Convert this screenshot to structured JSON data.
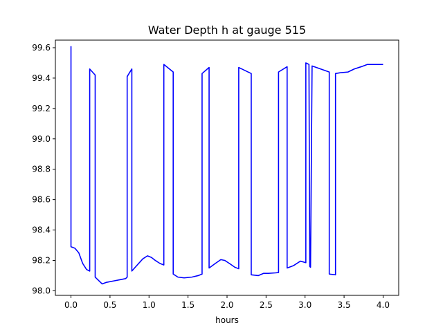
{
  "chart_data": {
    "type": "line",
    "title": "Water Depth h at gauge 515",
    "xlabel": "hours",
    "ylabel": "",
    "xlim": [
      -0.2,
      4.2
    ],
    "ylim": [
      97.97,
      99.65
    ],
    "xticks": [
      0.0,
      0.5,
      1.0,
      1.5,
      2.0,
      2.5,
      3.0,
      3.5,
      4.0
    ],
    "xtick_labels": [
      "0.0",
      "0.5",
      "1.0",
      "1.5",
      "2.0",
      "2.5",
      "3.0",
      "3.5",
      "4.0"
    ],
    "yticks": [
      98.0,
      98.2,
      98.4,
      98.6,
      98.8,
      99.0,
      99.2,
      99.4,
      99.6
    ],
    "ytick_labels": [
      "98.0",
      "98.2",
      "98.4",
      "98.6",
      "98.8",
      "99.0",
      "99.2",
      "99.4",
      "99.6"
    ],
    "grid": false,
    "series": [
      {
        "color": "#0000ff",
        "x": [
          0.0,
          0.0,
          0.05,
          0.1,
          0.15,
          0.2,
          0.24,
          0.24,
          0.31,
          0.31,
          0.35,
          0.4,
          0.45,
          0.55,
          0.65,
          0.7,
          0.72,
          0.72,
          0.78,
          0.78,
          0.85,
          0.92,
          0.98,
          1.03,
          1.08,
          1.14,
          1.19,
          1.19,
          1.31,
          1.31,
          1.37,
          1.45,
          1.55,
          1.63,
          1.68,
          1.68,
          1.77,
          1.77,
          1.85,
          1.92,
          1.97,
          2.03,
          2.1,
          2.15,
          2.15,
          2.31,
          2.31,
          2.4,
          2.47,
          2.53,
          2.62,
          2.66,
          2.66,
          2.77,
          2.77,
          2.85,
          2.94,
          3.01,
          3.01,
          3.05,
          3.06,
          3.07,
          3.09,
          3.09,
          3.31,
          3.31,
          3.39,
          3.39,
          3.45,
          3.55,
          3.63,
          3.72,
          3.8,
          3.9,
          4.0
        ],
        "y": [
          99.61,
          98.29,
          98.28,
          98.25,
          98.18,
          98.14,
          98.13,
          99.46,
          99.42,
          98.09,
          98.07,
          98.045,
          98.055,
          98.065,
          98.075,
          98.08,
          98.09,
          99.41,
          99.46,
          98.13,
          98.17,
          98.21,
          98.23,
          98.22,
          98.2,
          98.18,
          98.17,
          99.49,
          99.44,
          98.11,
          98.09,
          98.085,
          98.09,
          98.1,
          98.11,
          99.43,
          99.47,
          98.15,
          98.18,
          98.205,
          98.2,
          98.18,
          98.155,
          98.145,
          99.47,
          99.43,
          98.105,
          98.1,
          98.115,
          98.115,
          98.118,
          98.12,
          99.44,
          99.475,
          98.15,
          98.165,
          98.195,
          98.185,
          99.5,
          99.49,
          98.16,
          98.155,
          99.48,
          99.48,
          99.44,
          98.11,
          98.105,
          99.43,
          99.435,
          99.44,
          99.46,
          99.475,
          99.49,
          99.49,
          99.49
        ]
      }
    ]
  }
}
